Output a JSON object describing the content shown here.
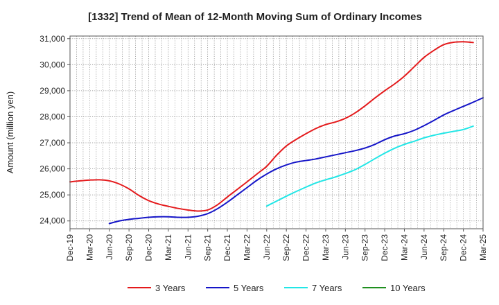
{
  "chart_data": {
    "type": "line",
    "title": "[1332]  Trend of Mean of 12-Month Moving Sum of Ordinary Incomes",
    "xlabel": "",
    "ylabel": "Amount (million yen)",
    "x_ticks": [
      "Dec-19",
      "Mar-20",
      "Jun-20",
      "Sep-20",
      "Dec-20",
      "Mar-21",
      "Jun-21",
      "Sep-21",
      "Dec-21",
      "Mar-22",
      "Jun-22",
      "Sep-22",
      "Dec-22",
      "Mar-23",
      "Jun-23",
      "Sep-23",
      "Dec-23",
      "Mar-24",
      "Jun-24",
      "Sep-24",
      "Dec-24",
      "Mar-25"
    ],
    "y_ticks": [
      24000,
      25000,
      26000,
      27000,
      28000,
      29000,
      30000,
      31000
    ],
    "y_tick_labels": [
      "24,000",
      "25,000",
      "26,000",
      "27,000",
      "28,000",
      "29,000",
      "30,000",
      "31,000"
    ],
    "ylim": [
      23700,
      31100
    ],
    "grid": true,
    "legend_position": "bottom",
    "series": [
      {
        "name": "3 Years",
        "color": "#e41a1c",
        "start_index": 0,
        "values": [
          25500,
          25540,
          25570,
          25580,
          25540,
          25420,
          25230,
          24980,
          24780,
          24650,
          24560,
          24480,
          24420,
          24380,
          24420,
          24620,
          24920,
          25210,
          25500,
          25800,
          26100,
          26520,
          26880,
          27130,
          27350,
          27550,
          27700,
          27800,
          27940,
          28150,
          28420,
          28720,
          29000,
          29260,
          29560,
          29920,
          30280,
          30550,
          30770,
          30860,
          30880,
          30850
        ]
      },
      {
        "name": "5 Years",
        "color": "#1515c8",
        "start_index": 6,
        "values": [
          23900,
          24000,
          24060,
          24100,
          24140,
          24160,
          24160,
          24140,
          24140,
          24180,
          24280,
          24470,
          24720,
          25000,
          25280,
          25560,
          25800,
          26000,
          26150,
          26260,
          26320,
          26380,
          26460,
          26540,
          26620,
          26700,
          26800,
          26940,
          27120,
          27260,
          27350,
          27480,
          27660,
          27860,
          28070,
          28240,
          28400,
          28560,
          28730
        ]
      },
      {
        "name": "7 Years",
        "color": "#22e6e6",
        "start_index": 30,
        "values": [
          24570,
          24760,
          24950,
          25130,
          25300,
          25460,
          25580,
          25690,
          25820,
          25970,
          26170,
          26390,
          26600,
          26790,
          26940,
          27060,
          27190,
          27290,
          27370,
          27440,
          27510,
          27640
        ]
      },
      {
        "name": "10 Years",
        "color": "#1f8f1f",
        "start_index": 0,
        "values": []
      }
    ]
  }
}
